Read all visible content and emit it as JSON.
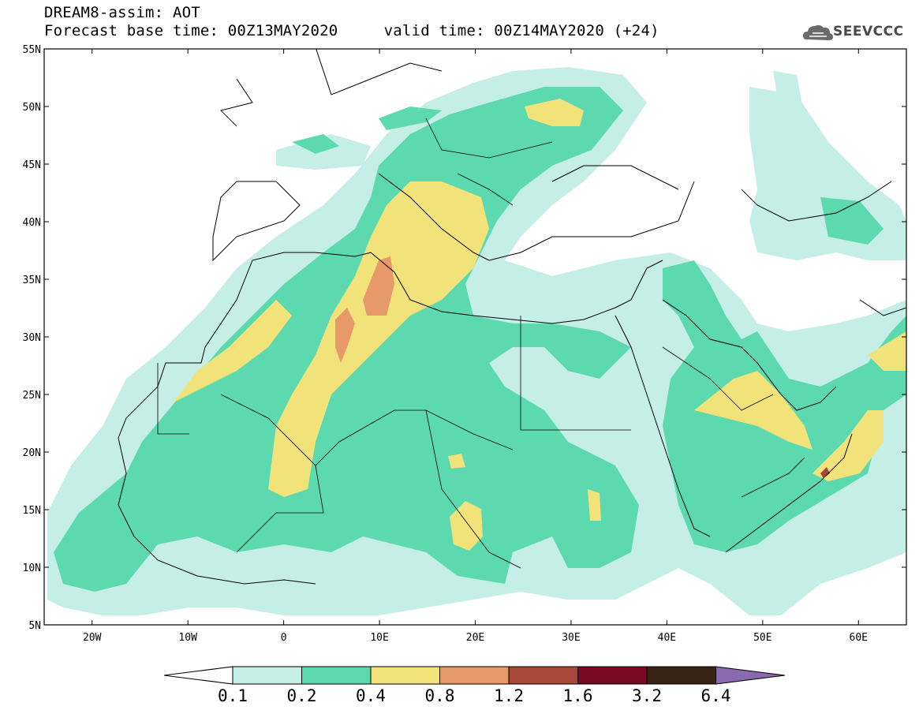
{
  "header": {
    "title_line1": "DREAM8-assim: AOT",
    "title_line2": "Forecast base time: 00Z13MAY2020     valid time: 00Z14MAY2020 (+24)"
  },
  "logo": {
    "text": "SEEVCCC",
    "icon": "cloud-icon"
  },
  "map": {
    "lon_range": [
      -25,
      65
    ],
    "lat_range": [
      5,
      55
    ],
    "lat_ticks": [
      {
        "lat": 55,
        "label": "55N"
      },
      {
        "lat": 50,
        "label": "50N"
      },
      {
        "lat": 45,
        "label": "45N"
      },
      {
        "lat": 40,
        "label": "40N"
      },
      {
        "lat": 35,
        "label": "35N"
      },
      {
        "lat": 30,
        "label": "30N"
      },
      {
        "lat": 25,
        "label": "25N"
      },
      {
        "lat": 20,
        "label": "20N"
      },
      {
        "lat": 15,
        "label": "15N"
      },
      {
        "lat": 10,
        "label": "10N"
      },
      {
        "lat": 5,
        "label": "5N"
      }
    ],
    "lon_ticks": [
      {
        "lon": -20,
        "label": "20W"
      },
      {
        "lon": -10,
        "label": "10W"
      },
      {
        "lon": 0,
        "label": "0"
      },
      {
        "lon": 10,
        "label": "10E"
      },
      {
        "lon": 20,
        "label": "20E"
      },
      {
        "lon": 30,
        "label": "30E"
      },
      {
        "lon": 40,
        "label": "40E"
      },
      {
        "lon": 50,
        "label": "50E"
      },
      {
        "lon": 60,
        "label": "60E"
      }
    ]
  },
  "colorbar": {
    "colors": [
      "#c4eee6",
      "#5dd9b0",
      "#f2e27a",
      "#e8996a",
      "#a84838",
      "#7a0a22",
      "#3a2414",
      "#8a6aae"
    ],
    "labels": [
      "0.1",
      "0.2",
      "0.4",
      "0.8",
      "1.2",
      "1.6",
      "3.2",
      "6.4"
    ]
  }
}
